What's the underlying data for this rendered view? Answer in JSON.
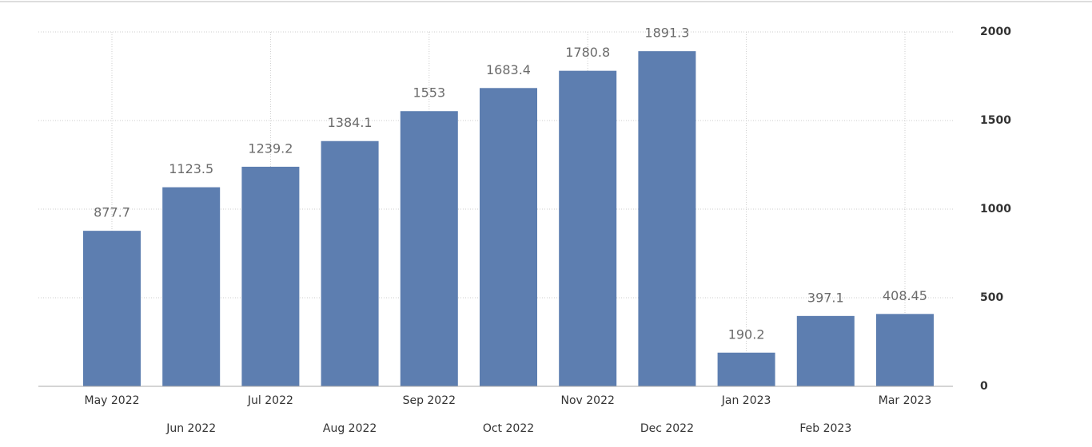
{
  "chart_data": {
    "type": "bar",
    "categories": [
      "May 2022",
      "Jun 2022",
      "Jul 2022",
      "Aug 2022",
      "Sep 2022",
      "Oct 2022",
      "Nov 2022",
      "Dec 2022",
      "Jan 2023",
      "Feb 2023",
      "Mar 2023"
    ],
    "values": [
      877.7,
      1123.5,
      1239.2,
      1384.1,
      1553,
      1683.4,
      1780.8,
      1891.3,
      190.2,
      397.1,
      408.45
    ],
    "color": "#5d7eb0",
    "ylim": [
      0,
      2000
    ],
    "yticks": [
      0,
      500,
      1000,
      1500,
      2000
    ],
    "grid": true
  }
}
